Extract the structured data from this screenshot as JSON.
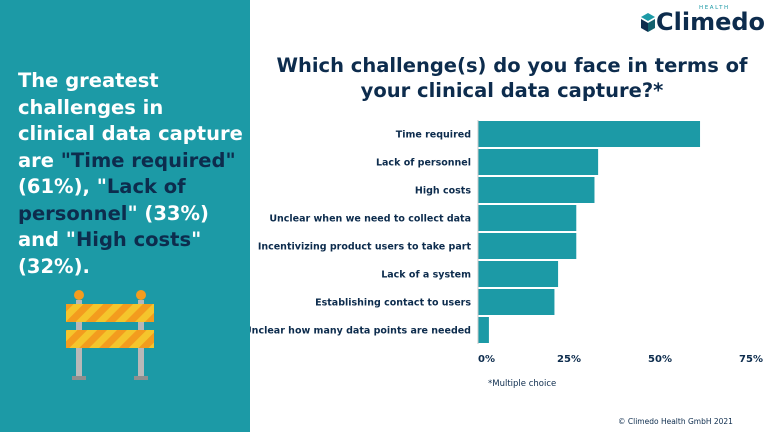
{
  "brand": {
    "name": "Climedo",
    "sub": "HEALTH"
  },
  "headline": {
    "part1": "The greatest challenges in clinical data capture are ",
    "hl1": "\"Time required\"",
    "part2": " (61%), \"",
    "hl2": "Lack of personnel",
    "part3": "\" (33%) and \"",
    "hl3": "High costs",
    "part4": "\" (32%)."
  },
  "note": "*Multiple choice",
  "footer": "© Climedo Health GmbH 2021",
  "colors": {
    "panel": "#1c9aa6",
    "bar": "#1c9aa6",
    "navy": "#0d2c4d",
    "barrier_yellow": "#f5c52c",
    "barrier_orange": "#f39c1e"
  },
  "icons": {
    "logo": "cube-logo-icon",
    "illustration": "road-barrier-icon"
  },
  "chart_data": {
    "type": "bar",
    "orientation": "horizontal",
    "title": "Which challenge(s) do you face in terms of your clinical data capture?*",
    "categories": [
      "Time required",
      "Lack of personnel",
      "High costs",
      "Unclear when we need to collect data",
      "Incentivizing product users to take part",
      "Lack of a system",
      "Establishing contact to users",
      "Unclear how many data points are needed"
    ],
    "values": [
      61,
      33,
      32,
      27,
      27,
      22,
      21,
      3
    ],
    "unit": "%",
    "xlim": [
      0,
      75
    ],
    "xticks": [
      0,
      25,
      50,
      75
    ],
    "xtick_labels": [
      "0%",
      "25%",
      "50%",
      "75%"
    ],
    "grid": false,
    "legend": "none"
  }
}
